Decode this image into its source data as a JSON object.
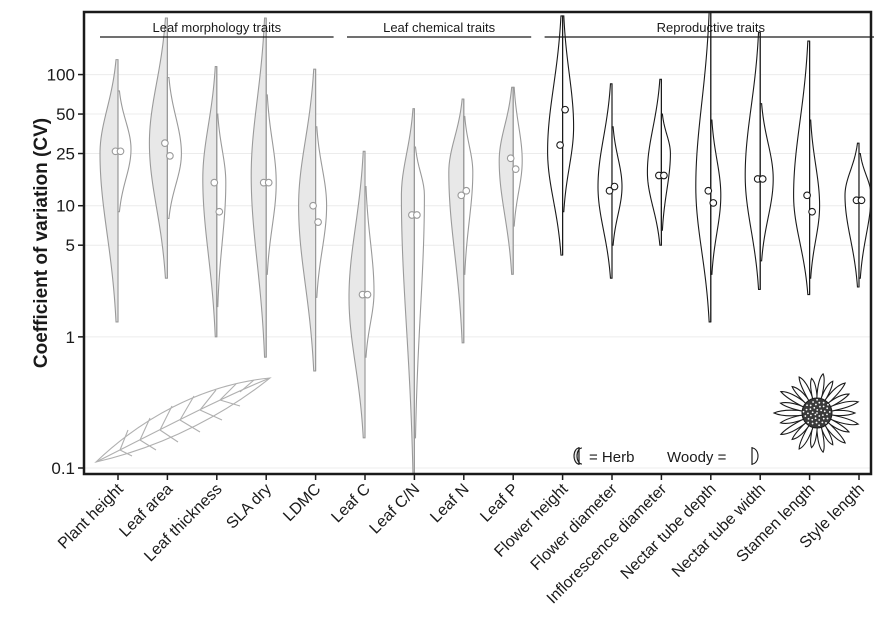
{
  "chart_data": {
    "type": "violin",
    "ylabel": "Coefficient of variation (CV)",
    "yscale": "log",
    "ylim": [
      0.09,
      300
    ],
    "yticks": [
      0.1,
      1,
      5,
      10,
      25,
      50,
      100
    ],
    "ytick_labels": [
      "0.1",
      "1",
      "5",
      "10",
      "25",
      "50",
      "100"
    ],
    "grid": true,
    "groups": [
      {
        "label": "Leaf morphology traits",
        "start": 0,
        "end": 4
      },
      {
        "label": "Leaf chemical traits",
        "start": 5,
        "end": 8
      },
      {
        "label": "Reproductive traits",
        "start": 9,
        "end": 15
      }
    ],
    "legend": {
      "herb_text": "= Herb",
      "woody_text": "Woody =",
      "position": "bottom-right"
    },
    "series": [
      {
        "key": "herb",
        "side": "left"
      },
      {
        "key": "woody",
        "side": "right"
      }
    ],
    "traits": [
      {
        "name": "Plant height",
        "color": "#9a9a9a",
        "fill": "#e8e8e8",
        "herb": {
          "min": 1.3,
          "max": 130,
          "mode": 25,
          "w": 18,
          "median": 26
        },
        "woody": {
          "min": 9,
          "max": 75,
          "mode": 27,
          "w": 13,
          "median": 26
        }
      },
      {
        "name": "Leaf area",
        "color": "#9a9a9a",
        "fill": "#e8e8e8",
        "herb": {
          "min": 2.8,
          "max": 270,
          "mode": 30,
          "w": 18,
          "median": 30
        },
        "woody": {
          "min": 8,
          "max": 95,
          "mode": 25,
          "w": 14,
          "median": 24
        }
      },
      {
        "name": "Leaf thickness",
        "color": "#9a9a9a",
        "fill": "#e8e8e8",
        "herb": {
          "min": 1.0,
          "max": 115,
          "mode": 16,
          "w": 14,
          "median": 15
        },
        "woody": {
          "min": 1.7,
          "max": 50,
          "mode": 15,
          "w": 9,
          "median": 9
        }
      },
      {
        "name": "SLA dry",
        "color": "#9a9a9a",
        "fill": "#e8e8e8",
        "herb": {
          "min": 0.7,
          "max": 270,
          "mode": 17,
          "w": 15,
          "median": 15
        },
        "woody": {
          "min": 3,
          "max": 70,
          "mode": 15,
          "w": 10,
          "median": 15
        }
      },
      {
        "name": "LDMC",
        "color": "#9a9a9a",
        "fill": "#e8e8e8",
        "herb": {
          "min": 0.55,
          "max": 110,
          "mode": 10,
          "w": 17,
          "median": 10
        },
        "woody": {
          "min": 2,
          "max": 40,
          "mode": 10,
          "w": 11,
          "median": 7.5
        }
      },
      {
        "name": "Leaf C",
        "color": "#9a9a9a",
        "fill": "#e8e8e8",
        "herb": {
          "min": 0.17,
          "max": 26,
          "mode": 2.0,
          "w": 16,
          "median": 2.1
        },
        "woody": {
          "min": 0.7,
          "max": 14,
          "mode": 2.2,
          "w": 9,
          "median": 2.1
        }
      },
      {
        "name": "Leaf C/N",
        "color": "#9a9a9a",
        "fill": "#e8e8e8",
        "herb": {
          "min": 0.09,
          "max": 55,
          "mode": 12,
          "w": 13,
          "median": 8.5
        },
        "woody": {
          "min": 0.17,
          "max": 28,
          "mode": 12,
          "w": 10,
          "median": 8.5
        }
      },
      {
        "name": "Leaf N",
        "color": "#9a9a9a",
        "fill": "#e8e8e8",
        "herb": {
          "min": 0.9,
          "max": 65,
          "mode": 18,
          "w": 15,
          "median": 12
        },
        "woody": {
          "min": 3,
          "max": 48,
          "mode": 18,
          "w": 9,
          "median": 13
        }
      },
      {
        "name": "Leaf P",
        "color": "#9a9a9a",
        "fill": "#e8e8e8",
        "herb": {
          "min": 3.0,
          "max": 80,
          "mode": 22,
          "w": 14,
          "median": 23
        },
        "woody": {
          "min": 7,
          "max": 80,
          "mode": 22,
          "w": 9,
          "median": 19
        }
      },
      {
        "name": "Flower height",
        "color": "#1a1a1a",
        "fill": "#ffffff",
        "herb": {
          "min": 4.2,
          "max": 280,
          "mode": 26,
          "w": 15,
          "median": 29
        },
        "woody": {
          "min": 9,
          "max": 280,
          "mode": 40,
          "w": 11,
          "median": 54
        }
      },
      {
        "name": "Flower diameter",
        "color": "#1a1a1a",
        "fill": "#ffffff",
        "herb": {
          "min": 2.8,
          "max": 85,
          "mode": 14,
          "w": 14,
          "median": 13
        },
        "woody": {
          "min": 5,
          "max": 40,
          "mode": 14,
          "w": 10,
          "median": 14
        }
      },
      {
        "name": "Inflorescence diameter",
        "color": "#1a1a1a",
        "fill": "#ffffff",
        "herb": {
          "min": 5,
          "max": 92,
          "mode": 18,
          "w": 14,
          "median": 17
        },
        "woody": {
          "min": 6.5,
          "max": 50,
          "mode": 25,
          "w": 9,
          "median": 17
        }
      },
      {
        "name": "Nectar tube depth",
        "color": "#1a1a1a",
        "fill": "#ffffff",
        "herb": {
          "min": 1.3,
          "max": 300,
          "mode": 14,
          "w": 15,
          "median": 13
        },
        "woody": {
          "min": 3,
          "max": 45,
          "mode": 12,
          "w": 10,
          "median": 10.5
        }
      },
      {
        "name": "Nectar tube width",
        "color": "#1a1a1a",
        "fill": "#ffffff",
        "herb": {
          "min": 2.3,
          "max": 210,
          "mode": 17,
          "w": 15,
          "median": 16
        },
        "woody": {
          "min": 3.8,
          "max": 60,
          "mode": 16,
          "w": 13,
          "median": 16
        }
      },
      {
        "name": "Stamen length",
        "color": "#1a1a1a",
        "fill": "#ffffff",
        "herb": {
          "min": 2.1,
          "max": 180,
          "mode": 12,
          "w": 16,
          "median": 12
        },
        "woody": {
          "min": 2.8,
          "max": 45,
          "mode": 10,
          "w": 10,
          "median": 9
        }
      },
      {
        "name": "Style length",
        "color": "#1a1a1a",
        "fill": "#ffffff",
        "herb": {
          "min": 2.4,
          "max": 30,
          "mode": 12,
          "w": 14,
          "median": 11
        },
        "woody": {
          "min": 2.8,
          "max": 25,
          "mode": 12,
          "w": 12,
          "median": 11
        }
      }
    ]
  }
}
